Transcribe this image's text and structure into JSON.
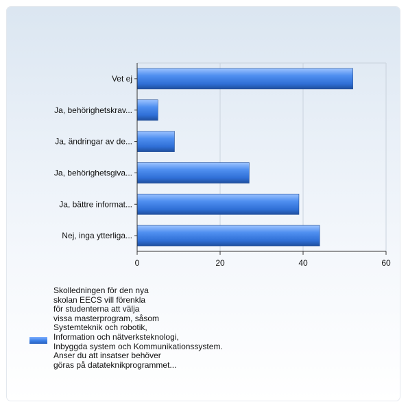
{
  "chart_data": {
    "type": "bar",
    "orientation": "horizontal",
    "categories": [
      "Vet ej",
      "Ja, behörighetskrav...",
      "Ja, ändringar av de...",
      "Ja, behörighetsgiva...",
      "Ja, bättre informat...",
      "Nej, inga ytterliga..."
    ],
    "series": [
      {
        "name": "Skolledningen för den nya\nskolan EECS vill förenkla\nför studenterna att välja\nvissa masterprogram, såsom\nSystemteknik och robotik,\nInformation och nätverksteknologi,\nInbyggda system och Kommunikationssystem.\nAnser du att insatser behöver\ngöras på datateknikprogrammet...",
        "values": [
          52,
          5,
          9,
          27,
          39,
          44
        ],
        "color": "#3b7fe6"
      }
    ],
    "xlim": [
      0,
      60
    ],
    "xticks": [
      "0",
      "20",
      "40",
      "60"
    ],
    "grid": true,
    "legend": "bottom-left"
  }
}
